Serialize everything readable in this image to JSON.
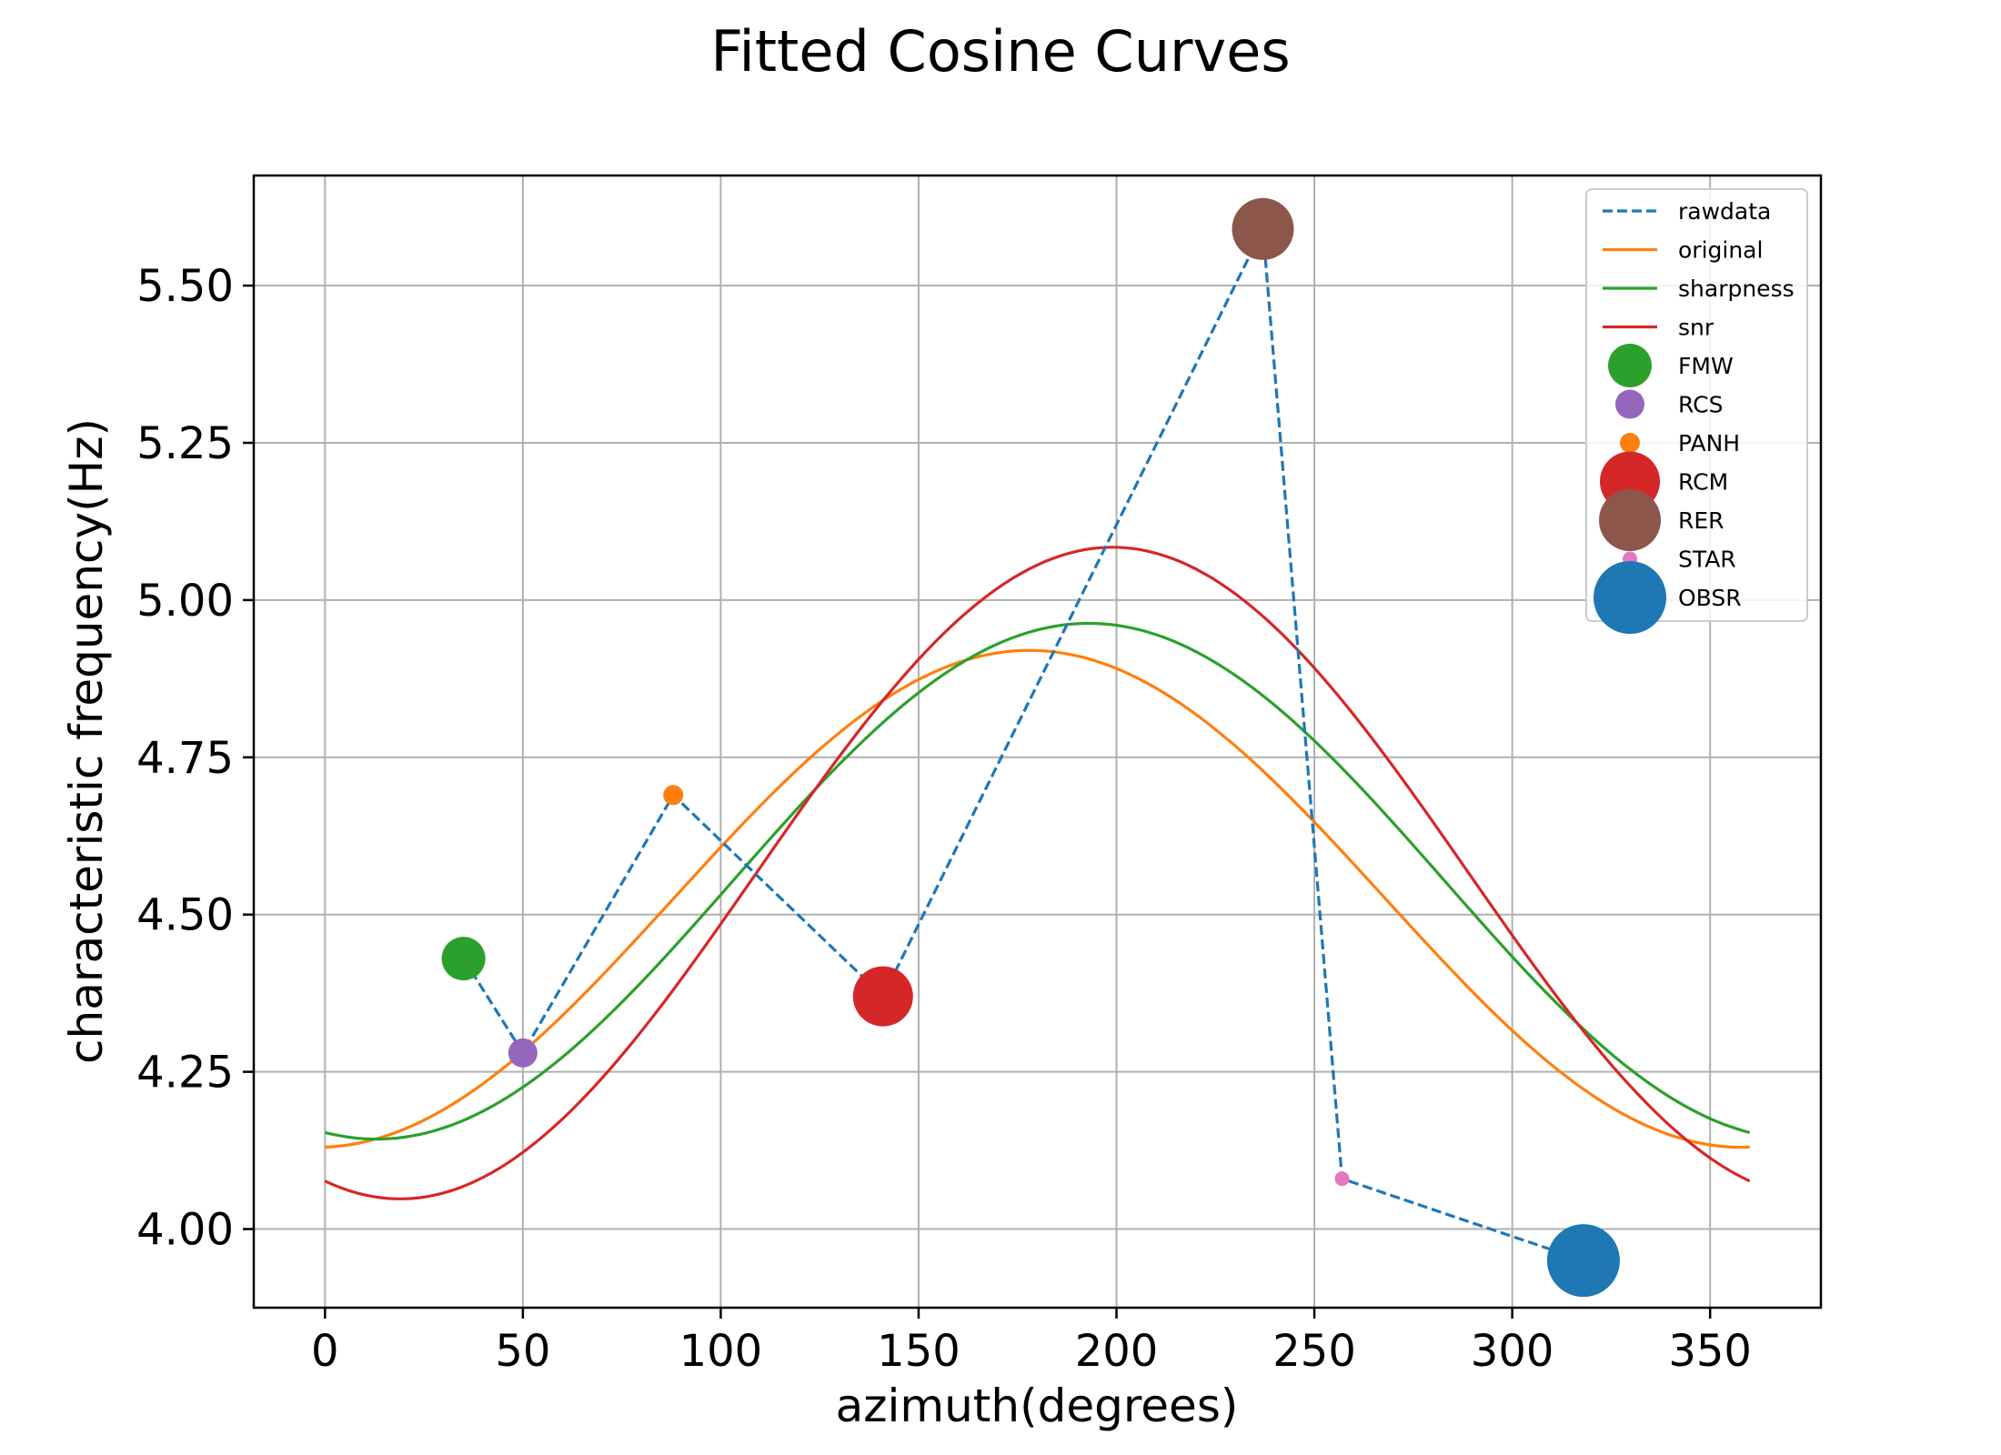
{
  "chart_data": {
    "type": "line",
    "title": "Fitted Cosine Curves",
    "xlabel": "azimuth(degrees)",
    "ylabel": "characteristic frequency(Hz)",
    "xlim": [
      -18,
      378
    ],
    "ylim": [
      3.875,
      5.675
    ],
    "grid": true,
    "legend_position": "top-right",
    "x_ticks": [
      0,
      50,
      100,
      150,
      200,
      250,
      300,
      350
    ],
    "x_tick_labels": [
      "0",
      "50",
      "100",
      "150",
      "200",
      "250",
      "300",
      "350"
    ],
    "y_ticks": [
      4.0,
      4.25,
      4.5,
      4.75,
      5.0,
      5.25,
      5.5
    ],
    "y_tick_labels": [
      "4.00",
      "4.25",
      "4.50",
      "4.75",
      "5.00",
      "5.25",
      "5.50"
    ],
    "rawdata": {
      "name": "rawdata",
      "color": "#1f77b4",
      "style": "dashed",
      "x": [
        35,
        50,
        88,
        141,
        237,
        257,
        318
      ],
      "y": [
        4.43,
        4.28,
        4.69,
        4.37,
        5.59,
        4.08,
        3.95
      ]
    },
    "curves": [
      {
        "name": "original",
        "color": "#ff7f0e",
        "mean": 4.525,
        "amplitude": 0.395,
        "phase_deg": 178
      },
      {
        "name": "sharpness",
        "color": "#2ca02c",
        "mean": 4.553,
        "amplitude": 0.41,
        "phase_deg": 193
      },
      {
        "name": "snr",
        "color": "#d62728",
        "mean": 4.566,
        "amplitude": 0.518,
        "phase_deg": 199
      }
    ],
    "stations": [
      {
        "name": "FMW",
        "x": 35,
        "y": 4.43,
        "color": "#2ca02c",
        "size": 24
      },
      {
        "name": "RCS",
        "x": 50,
        "y": 4.28,
        "color": "#9467bd",
        "size": 16
      },
      {
        "name": "PANH",
        "x": 88,
        "y": 4.69,
        "color": "#ff7f0e",
        "size": 11
      },
      {
        "name": "RCM",
        "x": 141,
        "y": 4.37,
        "color": "#d62728",
        "size": 33
      },
      {
        "name": "RER",
        "x": 237,
        "y": 5.59,
        "color": "#8c564b",
        "size": 34
      },
      {
        "name": "STAR",
        "x": 257,
        "y": 4.08,
        "color": "#e377c2",
        "size": 8
      },
      {
        "name": "OBSR",
        "x": 318,
        "y": 3.95,
        "color": "#1f77b4",
        "size": 40
      }
    ],
    "legend": [
      "rawdata",
      "original",
      "sharpness",
      "snr",
      "FMW",
      "RCS",
      "PANH",
      "RCM",
      "RER",
      "STAR",
      "OBSR"
    ]
  }
}
